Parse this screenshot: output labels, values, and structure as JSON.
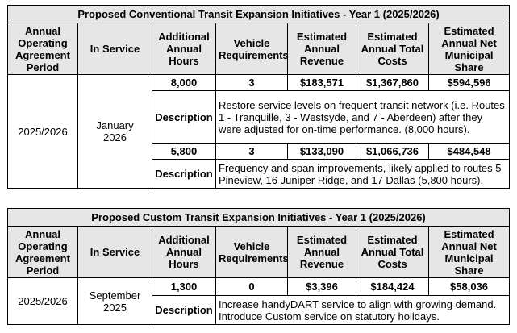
{
  "tables": [
    {
      "title": "Proposed Conventional Transit Expansion Initiatives - Year 1 (2025/2026)",
      "headers": [
        "Annual Operating Agreement Period",
        "In Service",
        "Additional Annual Hours",
        "Vehicle Requirements",
        "Estimated Annual Revenue",
        "Estimated Annual Total Costs",
        "Estimated Annual Net Municipal Share"
      ],
      "period": "2025/2026",
      "in_service": "January 2026",
      "description_label": "Description",
      "rows": [
        {
          "hours": "8,000",
          "vehicles": "3",
          "revenue": "$183,571",
          "costs": "$1,367,860",
          "net": "$594,596",
          "description": "Restore service levels on frequent transit network (i.e. Routes 1 - Tranquille, 3 - Westsyde, and 7 - Aberdeen) after they were adjusted for on-time performance. (8,000 hours)."
        },
        {
          "hours": "5,800",
          "vehicles": "3",
          "revenue": "$133,090",
          "costs": "$1,066,736",
          "net": "$484,548",
          "description": "Frequency and span improvements, likely applied to routes 5 Pineview, 16 Juniper Ridge, and 17 Dallas (5,800 hours)."
        }
      ]
    },
    {
      "title": "Proposed Custom Transit Expansion Initiatives - Year 1 (2025/2026)",
      "headers": [
        "Annual Operating Agreement Period",
        "In Service",
        "Additional Annual Hours",
        "Vehicle Requirements",
        "Estimated Annual Revenue",
        "Estimated Annual Total Costs",
        "Estimated Annual Net Municipal Share"
      ],
      "period": "2025/2026",
      "in_service": "September 2025",
      "description_label": "Description",
      "rows": [
        {
          "hours": "1,300",
          "vehicles": "0",
          "revenue": "$3,396",
          "costs": "$184,424",
          "net": "$58,036",
          "description": "Increase handyDART service to align with growing demand. Introduce Custom service on statutory holidays."
        }
      ]
    }
  ]
}
